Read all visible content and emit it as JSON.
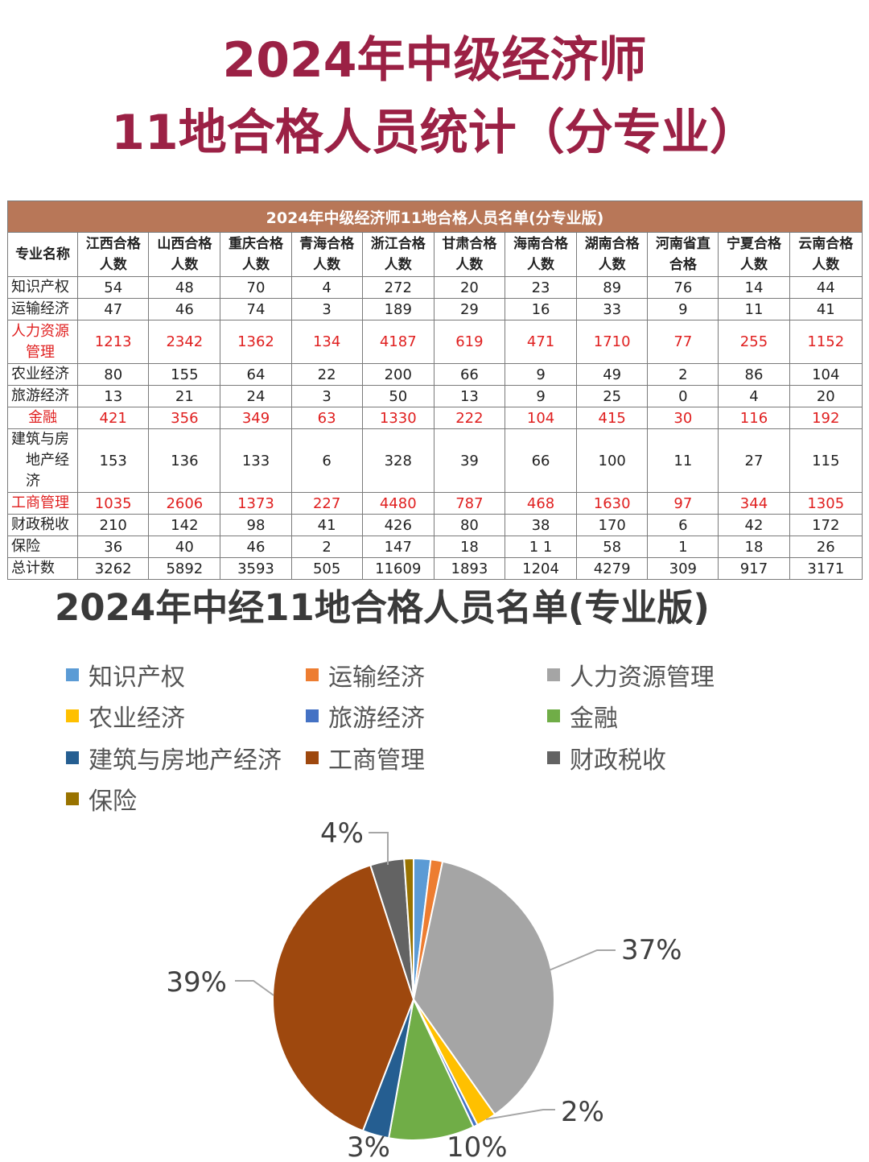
{
  "title_line1": "2024年中级经济师",
  "title_line2": "11地合格人员统计（分专业）",
  "table": {
    "banner": "2024年中级经济师11地合格人员名单(分专业版)",
    "corner": "专业名称",
    "columns": [
      [
        "江西合格",
        "人数"
      ],
      [
        "山西合格",
        "人数"
      ],
      [
        "重庆合格",
        "人数"
      ],
      [
        "青海合格",
        "人数"
      ],
      [
        "浙江合格",
        "人数"
      ],
      [
        "甘肃合格",
        "人数"
      ],
      [
        "海南合格",
        "人数"
      ],
      [
        "湖南合格",
        "人数"
      ],
      [
        "河南省直",
        "合格"
      ],
      [
        "宁夏合格",
        "人数"
      ],
      [
        "云南合格",
        "人数"
      ]
    ],
    "rows": [
      {
        "name": [
          "知识产权"
        ],
        "highlight": false,
        "values": [
          "54",
          "48",
          "70",
          "4",
          "272",
          "20",
          "23",
          "89",
          "76",
          "14",
          "44"
        ]
      },
      {
        "name": [
          "运输经济"
        ],
        "highlight": false,
        "values": [
          "47",
          "46",
          "74",
          "3",
          "189",
          "29",
          "16",
          "33",
          "9",
          "11",
          "41"
        ]
      },
      {
        "name": [
          "人力资源",
          "管理"
        ],
        "highlight": true,
        "values": [
          "1213",
          "2342",
          "1362",
          "134",
          "4187",
          "619",
          "471",
          "1710",
          "77",
          "255",
          "1152"
        ]
      },
      {
        "name": [
          "农业经济"
        ],
        "highlight": false,
        "values": [
          "80",
          "155",
          "64",
          "22",
          "200",
          "66",
          "9",
          "49",
          "2",
          "86",
          "104"
        ]
      },
      {
        "name": [
          "旅游经济"
        ],
        "highlight": false,
        "values": [
          "13",
          "21",
          "24",
          "3",
          "50",
          "13",
          "9",
          "25",
          "0",
          "4",
          "20"
        ]
      },
      {
        "name": [
          "金融"
        ],
        "highlight": true,
        "center": true,
        "values": [
          "421",
          "356",
          "349",
          "63",
          "1330",
          "222",
          "104",
          "415",
          "30",
          "116",
          "192"
        ]
      },
      {
        "name": [
          "建筑与房",
          "地产经济"
        ],
        "highlight": false,
        "values": [
          "153",
          "136",
          "133",
          "6",
          "328",
          "39",
          "66",
          "100",
          "11",
          "27",
          "115"
        ]
      },
      {
        "name": [
          "工商管理"
        ],
        "highlight": true,
        "values": [
          "1035",
          "2606",
          "1373",
          "227",
          "4480",
          "787",
          "468",
          "1630",
          "97",
          "344",
          "1305"
        ]
      },
      {
        "name": [
          "财政税收"
        ],
        "highlight": false,
        "values": [
          "210",
          "142",
          "98",
          "41",
          "426",
          "80",
          "38",
          "170",
          "6",
          "42",
          "172"
        ]
      },
      {
        "name": [
          "保险"
        ],
        "highlight": false,
        "values": [
          "36",
          "40",
          "46",
          "2",
          "147",
          "18",
          "1 1",
          "58",
          "1",
          "18",
          "26"
        ]
      },
      {
        "name": [
          "总计数"
        ],
        "highlight": false,
        "values": [
          "3262",
          "5892",
          "3593",
          "505",
          "11609",
          "1893",
          "1204",
          "4279",
          "309",
          "917",
          "3171"
        ]
      }
    ]
  },
  "chart_data": {
    "type": "pie",
    "title": "2024年中经11地合格人员名单(专业版)",
    "legend_position": "top",
    "categories": [
      "知识产权",
      "运输经济",
      "人力资源管理",
      "农业经济",
      "旅游经济",
      "金融",
      "建筑与房地产经济",
      "工商管理",
      "财政税收",
      "保险"
    ],
    "values": [
      714,
      498,
      13522,
      837,
      186,
      3598,
      1114,
      14352,
      1425,
      393
    ],
    "colors": [
      "#5b9bd5",
      "#ed7d31",
      "#a5a5a5",
      "#ffc000",
      "#4472c4",
      "#70ad47",
      "#255e91",
      "#9e480e",
      "#636363",
      "#997300"
    ],
    "data_labels": [
      "",
      "",
      "37%",
      "2%",
      "",
      "10%",
      "3%",
      "39%",
      "4%",
      ""
    ]
  }
}
